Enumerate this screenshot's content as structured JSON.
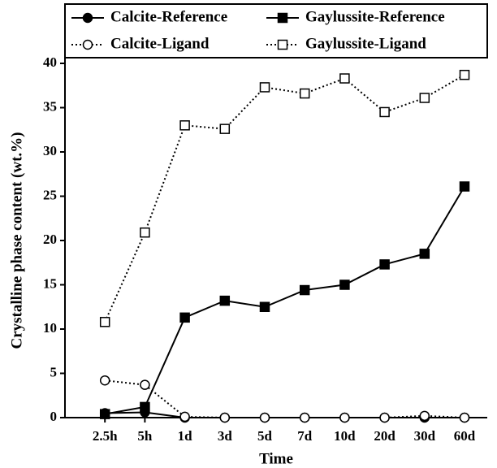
{
  "chart_data": {
    "type": "line",
    "x_label": "Time",
    "y_label": "Crystalline phase content (wt.%)",
    "categories": [
      "2.5h",
      "5h",
      "1d",
      "3d",
      "5d",
      "7d",
      "10d",
      "20d",
      "30d",
      "60d"
    ],
    "ylim": [
      0,
      40
    ],
    "yticks": [
      0,
      5,
      10,
      15,
      20,
      25,
      30,
      35,
      40
    ],
    "legend": "top",
    "series": [
      {
        "name": "Calcite-Reference",
        "color": "#000000",
        "marker": "circle",
        "filled": true,
        "line_style": "solid",
        "values": [
          0.5,
          0.6,
          0,
          0,
          0,
          0,
          0,
          0,
          0,
          0
        ]
      },
      {
        "name": "Gaylussite-Reference",
        "color": "#000000",
        "marker": "square",
        "filled": true,
        "line_style": "solid",
        "values": [
          0.4,
          1.2,
          11.3,
          13.2,
          12.5,
          14.4,
          15.0,
          17.3,
          18.5,
          26.1
        ]
      },
      {
        "name": "Calcite-Ligand",
        "color": "#000000",
        "marker": "circle",
        "filled": false,
        "line_style": "dotted",
        "values": [
          4.2,
          3.7,
          0.1,
          0,
          0,
          0,
          0,
          0,
          0.2,
          0
        ]
      },
      {
        "name": "Gaylussite-Ligand",
        "color": "#000000",
        "marker": "square",
        "filled": false,
        "line_style": "dotted",
        "values": [
          10.8,
          20.9,
          33.0,
          32.6,
          37.3,
          36.6,
          38.3,
          34.5,
          36.1,
          38.7
        ]
      }
    ]
  }
}
